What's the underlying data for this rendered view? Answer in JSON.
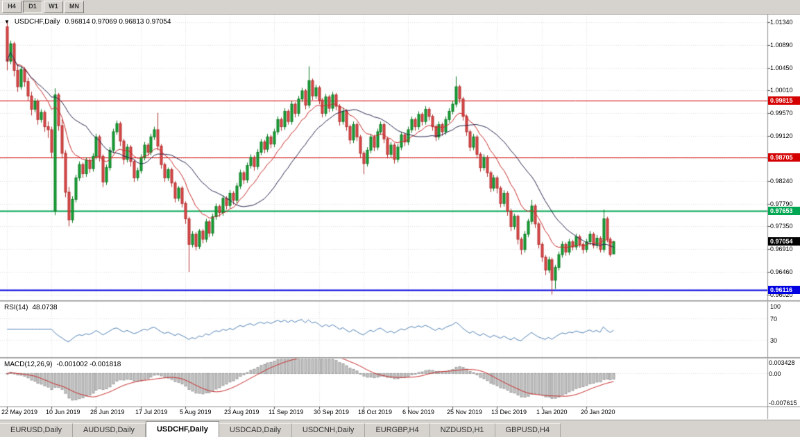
{
  "toolbar": {
    "timeframes": [
      {
        "label": "H4",
        "active": false
      },
      {
        "label": "D1",
        "active": true
      },
      {
        "label": "W1",
        "active": false
      },
      {
        "label": "MN",
        "active": false
      }
    ]
  },
  "chart": {
    "title": "USDCHF,Daily",
    "ohlc_text": "0.96814 0.97069 0.96813 0.97054",
    "colors": {
      "bull": "#18a437",
      "bull_dark": "#0e7a24",
      "bear": "#dd4a4a",
      "bear_dark": "#b23030",
      "grid": "#e0e0e0"
    },
    "price_lines": [
      {
        "value": 0.99815,
        "label": "0.99815",
        "color": "#d40000",
        "width": 1
      },
      {
        "value": 0.98705,
        "label": "0.98705",
        "color": "#d40000",
        "width": 1
      },
      {
        "value": 0.97653,
        "label": "0.97653",
        "color": "#00a651",
        "width": 2
      },
      {
        "value": 0.96116,
        "label": "0.96116",
        "color": "#0000e0",
        "width": 2
      }
    ],
    "current_price": {
      "value": 0.97054,
      "label": "0.97054",
      "color": "#000000"
    }
  },
  "chart_data": {
    "type": "candlestick",
    "symbol": "USDCHF",
    "timeframe": "Daily",
    "y_min": 0.9592,
    "y_max": 1.0149,
    "y_axis_labels": [
      "1.01340",
      "1.00890",
      "1.00450",
      "1.00010",
      "0.99570",
      "0.99120",
      "0.98680",
      "0.98240",
      "0.97790",
      "0.97350",
      "0.96910",
      "0.96460",
      "0.96020"
    ],
    "x_labels": [
      {
        "i": 0,
        "label": "22 May 2019"
      },
      {
        "i": 13,
        "label": "10 Jun 2019"
      },
      {
        "i": 26,
        "label": "28 Jun 2019"
      },
      {
        "i": 39,
        "label": "17 Jul 2019"
      },
      {
        "i": 52,
        "label": "5 Aug 2019"
      },
      {
        "i": 65,
        "label": "23 Aug 2019"
      },
      {
        "i": 78,
        "label": "11 Sep 2019"
      },
      {
        "i": 91,
        "label": "30 Sep 2019"
      },
      {
        "i": 104,
        "label": "18 Oct 2019"
      },
      {
        "i": 117,
        "label": "6 Nov 2019"
      },
      {
        "i": 130,
        "label": "25 Nov 2019"
      },
      {
        "i": 143,
        "label": "13 Dec 2019"
      },
      {
        "i": 156,
        "label": "1 Jan 2020"
      },
      {
        "i": 169,
        "label": "20 Jan 2020"
      }
    ],
    "moving_averages": [
      {
        "name": "fast-ma",
        "type": "ema",
        "period": 12,
        "color": "#c92b2b"
      },
      {
        "name": "slow-ma",
        "type": "sma",
        "period": 24,
        "color": "#26264f"
      }
    ],
    "candles": [
      [
        1.0125,
        1.0134,
        1.004,
        1.0058
      ],
      [
        1.0058,
        1.0098,
        1.0052,
        1.0092
      ],
      [
        1.0092,
        1.0096,
        1.0028,
        1.004
      ],
      [
        1.004,
        1.0052,
        0.9998,
        1.0008
      ],
      [
        1.0008,
        1.0048,
        1.0002,
        1.0042
      ],
      [
        1.0042,
        1.0046,
        1.0008,
        1.0018
      ],
      [
        1.0018,
        1.0026,
        0.998,
        0.999
      ],
      [
        0.999,
        0.9998,
        0.9952,
        0.9964
      ],
      [
        0.9964,
        0.9986,
        0.9958,
        0.998
      ],
      [
        0.998,
        0.9984,
        0.9934,
        0.9944
      ],
      [
        0.9944,
        0.9964,
        0.9938,
        0.9958
      ],
      [
        0.9958,
        0.9962,
        0.992,
        0.993
      ],
      [
        0.993,
        0.994,
        0.9908,
        0.9924
      ],
      [
        0.9924,
        0.993,
        0.987,
        0.988
      ],
      [
        0.9765,
        1.0005,
        0.9757,
        0.9992
      ],
      [
        0.9992,
        0.9996,
        0.9922,
        0.9932
      ],
      [
        0.9932,
        0.9944,
        0.9868,
        0.9878
      ],
      [
        0.9878,
        0.9884,
        0.9792,
        0.9802
      ],
      [
        0.9802,
        0.9812,
        0.9735,
        0.9748
      ],
      [
        0.9748,
        0.9794,
        0.9742,
        0.9788
      ],
      [
        0.9788,
        0.9836,
        0.9782,
        0.983
      ],
      [
        0.983,
        0.9862,
        0.9824,
        0.9856
      ],
      [
        0.9856,
        0.986,
        0.983,
        0.9838
      ],
      [
        0.9838,
        0.987,
        0.9832,
        0.9864
      ],
      [
        0.9864,
        0.9868,
        0.984,
        0.9848
      ],
      [
        0.9848,
        0.9878,
        0.9842,
        0.9872
      ],
      [
        0.9872,
        0.9916,
        0.9866,
        0.991
      ],
      [
        0.991,
        0.9914,
        0.9862,
        0.9872
      ],
      [
        0.9872,
        0.9876,
        0.9812,
        0.9822
      ],
      [
        0.9822,
        0.9856,
        0.9816,
        0.985
      ],
      [
        0.985,
        0.989,
        0.9844,
        0.9884
      ],
      [
        0.9884,
        0.9926,
        0.9878,
        0.992
      ],
      [
        0.992,
        0.9942,
        0.9914,
        0.9936
      ],
      [
        0.9936,
        0.994,
        0.9892,
        0.9902
      ],
      [
        0.9902,
        0.9906,
        0.9856,
        0.9866
      ],
      [
        0.9866,
        0.9896,
        0.986,
        0.989
      ],
      [
        0.989,
        0.9894,
        0.9852,
        0.9862
      ],
      [
        0.9862,
        0.9866,
        0.9822,
        0.983
      ],
      [
        0.983,
        0.985,
        0.9824,
        0.9844
      ],
      [
        0.9844,
        0.9876,
        0.9838,
        0.987
      ],
      [
        0.987,
        0.99,
        0.9864,
        0.9894
      ],
      [
        0.9894,
        0.9898,
        0.9872,
        0.988
      ],
      [
        0.988,
        0.9916,
        0.9874,
        0.991
      ],
      [
        0.991,
        0.993,
        0.9904,
        0.9924
      ],
      [
        0.9924,
        0.9957,
        0.9884,
        0.9892
      ],
      [
        0.9892,
        0.9896,
        0.9848,
        0.9856
      ],
      [
        0.9856,
        0.986,
        0.9822,
        0.983
      ],
      [
        0.983,
        0.985,
        0.9824,
        0.9846
      ],
      [
        0.9846,
        0.985,
        0.9812,
        0.982
      ],
      [
        0.982,
        0.9824,
        0.9782,
        0.979
      ],
      [
        0.979,
        0.9814,
        0.9784,
        0.981
      ],
      [
        0.981,
        0.9814,
        0.9772,
        0.978
      ],
      [
        0.978,
        0.9784,
        0.974,
        0.975
      ],
      [
        0.975,
        0.9754,
        0.9646,
        0.97
      ],
      [
        0.97,
        0.9726,
        0.9694,
        0.972
      ],
      [
        0.972,
        0.9724,
        0.9688,
        0.9696
      ],
      [
        0.9696,
        0.973,
        0.9691,
        0.9726
      ],
      [
        0.9726,
        0.973,
        0.9702,
        0.971
      ],
      [
        0.971,
        0.975,
        0.9704,
        0.9744
      ],
      [
        0.9744,
        0.9748,
        0.9714,
        0.9722
      ],
      [
        0.9722,
        0.976,
        0.9716,
        0.9754
      ],
      [
        0.9754,
        0.978,
        0.9748,
        0.9774
      ],
      [
        0.9774,
        0.9778,
        0.9754,
        0.9762
      ],
      [
        0.9762,
        0.9796,
        0.9756,
        0.979
      ],
      [
        0.979,
        0.9794,
        0.9768,
        0.9776
      ],
      [
        0.9776,
        0.9806,
        0.977,
        0.98
      ],
      [
        0.98,
        0.9804,
        0.9778,
        0.9786
      ],
      [
        0.9786,
        0.982,
        0.978,
        0.9814
      ],
      [
        0.9814,
        0.9846,
        0.9808,
        0.984
      ],
      [
        0.984,
        0.9844,
        0.9818,
        0.9826
      ],
      [
        0.9826,
        0.986,
        0.982,
        0.9854
      ],
      [
        0.9854,
        0.9876,
        0.9848,
        0.987
      ],
      [
        0.987,
        0.9874,
        0.9844,
        0.9852
      ],
      [
        0.9852,
        0.9886,
        0.9846,
        0.988
      ],
      [
        0.988,
        0.9906,
        0.9874,
        0.99
      ],
      [
        0.99,
        0.9904,
        0.9878,
        0.9886
      ],
      [
        0.9886,
        0.9916,
        0.988,
        0.991
      ],
      [
        0.991,
        0.9914,
        0.9888,
        0.9896
      ],
      [
        0.9896,
        0.9926,
        0.989,
        0.992
      ],
      [
        0.992,
        0.995,
        0.9914,
        0.9944
      ],
      [
        0.9944,
        0.9948,
        0.9922,
        0.993
      ],
      [
        0.993,
        0.9966,
        0.9924,
        0.996
      ],
      [
        0.996,
        0.9964,
        0.9934,
        0.994
      ],
      [
        0.994,
        0.998,
        0.9934,
        0.9974
      ],
      [
        0.9974,
        0.9978,
        0.9948,
        0.9956
      ],
      [
        0.9956,
        0.999,
        0.995,
        0.9984
      ],
      [
        0.9984,
        1.0006,
        0.9978,
        1.0
      ],
      [
        1.0,
        1.0004,
        0.9964,
        0.9972
      ],
      [
        0.9972,
        1.0048,
        0.9966,
        1.002
      ],
      [
        1.002,
        1.0024,
        0.9982,
        0.999
      ],
      [
        0.999,
        1.0012,
        0.9984,
        1.0006
      ],
      [
        1.0006,
        1.001,
        0.9974,
        0.9982
      ],
      [
        0.9982,
        0.9986,
        0.9948,
        0.9956
      ],
      [
        0.9956,
        0.9994,
        0.995,
        0.9988
      ],
      [
        0.9988,
        0.9992,
        0.9958,
        0.9966
      ],
      [
        0.9966,
        0.9998,
        0.996,
        0.9992
      ],
      [
        0.9992,
        0.9996,
        0.9962,
        0.997
      ],
      [
        0.997,
        0.9974,
        0.9932,
        0.994
      ],
      [
        0.994,
        0.9966,
        0.9934,
        0.996
      ],
      [
        0.996,
        0.9964,
        0.9922,
        0.993
      ],
      [
        0.993,
        0.9934,
        0.9896,
        0.9904
      ],
      [
        0.9904,
        0.994,
        0.9898,
        0.9934
      ],
      [
        0.9934,
        0.9938,
        0.9902,
        0.991
      ],
      [
        0.991,
        0.9914,
        0.987,
        0.9878
      ],
      [
        0.9878,
        0.9882,
        0.9837,
        0.9858
      ],
      [
        0.9858,
        0.989,
        0.9852,
        0.9884
      ],
      [
        0.9884,
        0.9916,
        0.9878,
        0.991
      ],
      [
        0.991,
        0.9914,
        0.9882,
        0.989
      ],
      [
        0.989,
        0.9926,
        0.9884,
        0.992
      ],
      [
        0.992,
        0.994,
        0.9914,
        0.9934
      ],
      [
        0.9934,
        0.9938,
        0.9898,
        0.9906
      ],
      [
        0.9906,
        0.991,
        0.9868,
        0.9876
      ],
      [
        0.9876,
        0.99,
        0.987,
        0.9894
      ],
      [
        0.9894,
        0.9898,
        0.9858,
        0.9866
      ],
      [
        0.9866,
        0.9896,
        0.986,
        0.989
      ],
      [
        0.989,
        0.992,
        0.9884,
        0.9914
      ],
      [
        0.9914,
        0.9918,
        0.9892,
        0.99
      ],
      [
        0.99,
        0.993,
        0.9894,
        0.9924
      ],
      [
        0.9924,
        0.995,
        0.9918,
        0.9944
      ],
      [
        0.9944,
        0.9948,
        0.9922,
        0.993
      ],
      [
        0.993,
        0.996,
        0.9924,
        0.9954
      ],
      [
        0.9954,
        0.9958,
        0.9932,
        0.994
      ],
      [
        0.994,
        0.997,
        0.9934,
        0.9964
      ],
      [
        0.9964,
        0.9968,
        0.9942,
        0.995
      ],
      [
        0.995,
        0.9954,
        0.9922,
        0.993
      ],
      [
        0.993,
        0.9934,
        0.9902,
        0.991
      ],
      [
        0.991,
        0.994,
        0.9904,
        0.9934
      ],
      [
        0.9934,
        0.9938,
        0.9912,
        0.992
      ],
      [
        0.992,
        0.995,
        0.9914,
        0.9944
      ],
      [
        0.9944,
        0.9966,
        0.9938,
        0.996
      ],
      [
        0.996,
        0.998,
        0.9954,
        0.9974
      ],
      [
        0.9974,
        1.0028,
        0.9968,
        1.0008
      ],
      [
        1.0008,
        1.0012,
        0.9976,
        0.9984
      ],
      [
        0.9984,
        0.9988,
        0.9942,
        0.995
      ],
      [
        0.995,
        0.9954,
        0.9912,
        0.992
      ],
      [
        0.992,
        0.9924,
        0.9882,
        0.989
      ],
      [
        0.989,
        0.9916,
        0.9884,
        0.991
      ],
      [
        0.991,
        0.9914,
        0.9868,
        0.9876
      ],
      [
        0.9876,
        0.988,
        0.9842,
        0.985
      ],
      [
        0.985,
        0.9876,
        0.9844,
        0.987
      ],
      [
        0.987,
        0.9874,
        0.9832,
        0.984
      ],
      [
        0.984,
        0.9844,
        0.9802,
        0.981
      ],
      [
        0.981,
        0.9836,
        0.9804,
        0.983
      ],
      [
        0.983,
        0.9834,
        0.98,
        0.981
      ],
      [
        0.981,
        0.9814,
        0.9772,
        0.978
      ],
      [
        0.978,
        0.9806,
        0.9774,
        0.98
      ],
      [
        0.98,
        0.9804,
        0.9756,
        0.9765
      ],
      [
        0.9765,
        0.977,
        0.9726,
        0.9735
      ],
      [
        0.9735,
        0.976,
        0.9729,
        0.9755
      ],
      [
        0.9755,
        0.9758,
        0.97,
        0.971
      ],
      [
        0.971,
        0.9714,
        0.968,
        0.969
      ],
      [
        0.969,
        0.9726,
        0.9684,
        0.972
      ],
      [
        0.972,
        0.975,
        0.9714,
        0.9745
      ],
      [
        0.9745,
        0.9787,
        0.9739,
        0.9775
      ],
      [
        0.9775,
        0.9779,
        0.9732,
        0.974
      ],
      [
        0.974,
        0.9744,
        0.9692,
        0.97
      ],
      [
        0.97,
        0.9704,
        0.9666,
        0.9675
      ],
      [
        0.9675,
        0.9679,
        0.964,
        0.965
      ],
      [
        0.965,
        0.9676,
        0.9644,
        0.967
      ],
      [
        0.967,
        0.9674,
        0.9602,
        0.963
      ],
      [
        0.963,
        0.966,
        0.9613,
        0.9655
      ],
      [
        0.9655,
        0.9686,
        0.9649,
        0.968
      ],
      [
        0.968,
        0.9706,
        0.9674,
        0.97
      ],
      [
        0.97,
        0.9704,
        0.9678,
        0.9685
      ],
      [
        0.9685,
        0.9711,
        0.9679,
        0.9705
      ],
      [
        0.9705,
        0.9709,
        0.9688,
        0.9695
      ],
      [
        0.9695,
        0.9721,
        0.9689,
        0.9715
      ],
      [
        0.9715,
        0.9719,
        0.9694,
        0.97
      ],
      [
        0.97,
        0.9704,
        0.9682,
        0.969
      ],
      [
        0.969,
        0.9711,
        0.9684,
        0.9705
      ],
      [
        0.9705,
        0.9726,
        0.9699,
        0.972
      ],
      [
        0.972,
        0.9724,
        0.9692,
        0.9698
      ],
      [
        0.9698,
        0.9718,
        0.9692,
        0.9712
      ],
      [
        0.9712,
        0.9716,
        0.9684,
        0.969
      ],
      [
        0.969,
        0.9768,
        0.9684,
        0.975
      ],
      [
        0.975,
        0.9754,
        0.9704,
        0.971
      ],
      [
        0.971,
        0.9714,
        0.9676,
        0.968
      ],
      [
        0.96814,
        0.97069,
        0.96813,
        0.97054
      ]
    ]
  },
  "rsi_panel": {
    "name": "RSI(14)",
    "value": "48.0738",
    "period": 14,
    "color": "#4f81b5",
    "axis_labels": [
      "100",
      "70",
      "30"
    ],
    "levels": [
      70,
      30
    ]
  },
  "macd_panel": {
    "name": "MACD(12,26,9)",
    "values_text": "-0.001002 -0.001818",
    "fast": 12,
    "slow": 26,
    "signal": 9,
    "scale_max": 0.003428,
    "scale_min": -0.007615,
    "axis_labels": [
      "0.003428",
      "0.00",
      "-0.007615"
    ],
    "hist_color": "#c8c8c8",
    "hist_border": "#9a9a9a",
    "signal_color": "#c92b2b"
  },
  "tabs": [
    {
      "label": "EURUSD,Daily",
      "active": false
    },
    {
      "label": "AUDUSD,Daily",
      "active": false
    },
    {
      "label": "USDCHF,Daily",
      "active": true
    },
    {
      "label": "USDCAD,Daily",
      "active": false
    },
    {
      "label": "USDCNH,Daily",
      "active": false
    },
    {
      "label": "EURGBP,H4",
      "active": false
    },
    {
      "label": "NZDUSD,H1",
      "active": false
    },
    {
      "label": "GBPUSD,H4",
      "active": false
    }
  ]
}
